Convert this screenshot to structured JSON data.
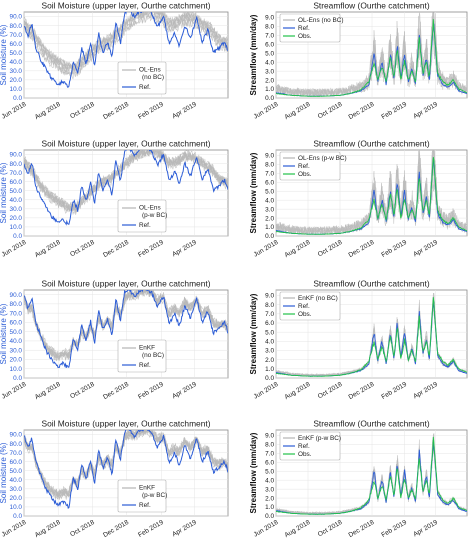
{
  "figure": {
    "panels": [
      {
        "id": "sm1",
        "kind": "sm",
        "title": "Soil Moisture (upper layer, Ourthe catchment)",
        "ylabel": "Soil moisture (%)",
        "legend": [
          {
            "label": "OL-Ens\n(no BC)",
            "color": "#b5b5b5"
          },
          {
            "label": "Ref.",
            "color": "#2b5cd6"
          }
        ],
        "legend_pos": "lower-center",
        "series": "ens_ref"
      },
      {
        "id": "sf1",
        "kind": "sf",
        "title": "Streamflow (Ourthe catchment)",
        "ylabel": "Streamflow (mm/day)",
        "legend": [
          {
            "label": "OL-Ens (no BC)",
            "color": "#b5b5b5"
          },
          {
            "label": "Ref.",
            "color": "#2b5cd6"
          },
          {
            "label": "Obs.",
            "color": "#22c24a"
          }
        ],
        "legend_pos": "upper-left",
        "spread": "wide"
      },
      {
        "id": "sm2",
        "kind": "sm",
        "title": "Soil Moisture (upper layer, Ourthe catchment)",
        "ylabel": "Soil moisture (%)",
        "legend": [
          {
            "label": "OL-Ens\n(p-w BC)",
            "color": "#b5b5b5"
          },
          {
            "label": "Ref.",
            "color": "#2b5cd6"
          }
        ],
        "legend_pos": "lower-center",
        "series": "ens_ref"
      },
      {
        "id": "sf2",
        "kind": "sf",
        "title": "Streamflow (Ourthe catchment)",
        "ylabel": "Streamflow (mm/day)",
        "legend": [
          {
            "label": "OL-Ens (p-w BC)",
            "color": "#b5b5b5"
          },
          {
            "label": "Ref.",
            "color": "#2b5cd6"
          },
          {
            "label": "Obs.",
            "color": "#22c24a"
          }
        ],
        "legend_pos": "upper-left",
        "spread": "wide"
      },
      {
        "id": "sm3",
        "kind": "sm",
        "title": "Soil Moisture (upper layer, Ourthe catchment)",
        "ylabel": "Soil moisture (%)",
        "legend": [
          {
            "label": "EnKF\n(no BC)",
            "color": "#b5b5b5"
          },
          {
            "label": "Ref.",
            "color": "#2b5cd6"
          }
        ],
        "legend_pos": "lower-center",
        "series": "enkf"
      },
      {
        "id": "sf3",
        "kind": "sf",
        "title": "Streamflow (Ourthe catchment)",
        "ylabel": "Streamflow (mm/day)",
        "legend": [
          {
            "label": "EnKF (no BC)",
            "color": "#b5b5b5"
          },
          {
            "label": "Ref.",
            "color": "#2b5cd6"
          },
          {
            "label": "Obs.",
            "color": "#22c24a"
          }
        ],
        "legend_pos": "upper-left",
        "spread": "narrow"
      },
      {
        "id": "sm4",
        "kind": "sm",
        "title": "Soil Moisture (upper layer, Ourthe catchment)",
        "ylabel": "Soil moisture (%)",
        "legend": [
          {
            "label": "EnKF\n(p-w BC)",
            "color": "#b5b5b5"
          },
          {
            "label": "Ref.",
            "color": "#2b5cd6"
          }
        ],
        "legend_pos": "lower-center",
        "series": "enkf"
      },
      {
        "id": "sf4",
        "kind": "sf",
        "title": "Streamflow (Ourthe catchment)",
        "ylabel": "Streamflow (mm/day)",
        "legend": [
          {
            "label": "EnKF (p-w BC)",
            "color": "#b5b5b5"
          },
          {
            "label": "Ref.",
            "color": "#2b5cd6"
          },
          {
            "label": "Obs.",
            "color": "#22c24a"
          }
        ],
        "legend_pos": "upper-left",
        "spread": "narrow"
      }
    ]
  },
  "chart_data": {
    "type": "line",
    "x_range": [
      "2018-06-01",
      "2019-05-31"
    ],
    "x_ticks": [
      "Jun 2018",
      "Aug 2018",
      "Oct 2018",
      "Dec 2018",
      "Feb 2019",
      "Apr 2019"
    ],
    "sm_axis": {
      "ylim": [
        0,
        95
      ],
      "ticks": [
        "0.0",
        "10.0",
        "20.0",
        "30.0",
        "40.0",
        "50.0",
        "60.0",
        "70.0",
        "80.0",
        "90.0"
      ]
    },
    "sf_axis": {
      "ylim": [
        0,
        9.6
      ],
      "ticks": [
        "0.0",
        "1.0",
        "2.0",
        "3.0",
        "4.0",
        "5.0",
        "6.0",
        "7.0",
        "8.0",
        "9.0"
      ]
    },
    "sm_ref": {
      "x": [
        "2018-06-01",
        "2018-06-08",
        "2018-06-15",
        "2018-06-22",
        "2018-07-01",
        "2018-07-10",
        "2018-07-20",
        "2018-08-01",
        "2018-08-10",
        "2018-08-20",
        "2018-08-28",
        "2018-09-05",
        "2018-09-12",
        "2018-09-20",
        "2018-09-28",
        "2018-10-05",
        "2018-10-12",
        "2018-10-20",
        "2018-10-28",
        "2018-11-05",
        "2018-11-12",
        "2018-11-20",
        "2018-11-28",
        "2018-12-05",
        "2018-12-15",
        "2018-12-25",
        "2019-01-05",
        "2019-01-15",
        "2019-01-25",
        "2019-02-05",
        "2019-02-15",
        "2019-02-25",
        "2019-03-05",
        "2019-03-15",
        "2019-03-25",
        "2019-04-05",
        "2019-04-15",
        "2019-04-25",
        "2019-05-05",
        "2019-05-15",
        "2019-05-25",
        "2019-05-31"
      ],
      "y": [
        80,
        68,
        82,
        55,
        42,
        32,
        22,
        15,
        18,
        12,
        40,
        28,
        55,
        38,
        60,
        35,
        72,
        50,
        62,
        45,
        85,
        60,
        95,
        98,
        90,
        96,
        98,
        94,
        78,
        90,
        60,
        72,
        58,
        80,
        66,
        88,
        62,
        75,
        50,
        55,
        62,
        52
      ]
    },
    "sm_ref_enkf": {
      "x": [
        "2018-06-01",
        "2018-06-08",
        "2018-06-15",
        "2018-06-22",
        "2018-07-01",
        "2018-07-10",
        "2018-07-20",
        "2018-08-01",
        "2018-08-10",
        "2018-08-20",
        "2018-08-28",
        "2018-09-05",
        "2018-09-12",
        "2018-09-20",
        "2018-09-28",
        "2018-10-05",
        "2018-10-12",
        "2018-10-20",
        "2018-10-28",
        "2018-11-05",
        "2018-11-12",
        "2018-11-20",
        "2018-11-28",
        "2018-12-05",
        "2018-12-15",
        "2018-12-25",
        "2019-01-05",
        "2019-01-15",
        "2019-01-25",
        "2019-02-05",
        "2019-02-15",
        "2019-02-25",
        "2019-03-05",
        "2019-03-15",
        "2019-03-25",
        "2019-04-05",
        "2019-04-15",
        "2019-04-25",
        "2019-05-05",
        "2019-05-15",
        "2019-05-25",
        "2019-05-31"
      ],
      "y": [
        90,
        75,
        86,
        60,
        45,
        30,
        20,
        12,
        16,
        10,
        42,
        30,
        58,
        40,
        62,
        36,
        74,
        52,
        64,
        46,
        86,
        62,
        94,
        96,
        88,
        95,
        97,
        92,
        76,
        88,
        58,
        70,
        56,
        78,
        64,
        86,
        60,
        72,
        48,
        54,
        60,
        50
      ]
    },
    "sm_ens_mean": {
      "x": [
        "2018-06-01",
        "2018-06-15",
        "2018-07-01",
        "2018-07-15",
        "2018-08-01",
        "2018-08-15",
        "2018-09-01",
        "2018-09-15",
        "2018-10-01",
        "2018-10-15",
        "2018-11-01",
        "2018-11-15",
        "2018-12-01",
        "2018-12-15",
        "2019-01-01",
        "2019-01-15",
        "2019-02-01",
        "2019-02-15",
        "2019-03-01",
        "2019-03-15",
        "2019-04-01",
        "2019-04-15",
        "2019-05-01",
        "2019-05-15",
        "2019-05-31"
      ],
      "y": [
        82,
        72,
        55,
        45,
        38,
        32,
        30,
        40,
        50,
        58,
        62,
        70,
        80,
        88,
        92,
        94,
        90,
        80,
        82,
        88,
        86,
        80,
        74,
        62,
        58
      ]
    },
    "sm_enkf_mean": {
      "x": [
        "2018-06-01",
        "2018-06-15",
        "2018-07-01",
        "2018-07-15",
        "2018-08-01",
        "2018-08-15",
        "2018-09-01",
        "2018-09-15",
        "2018-10-01",
        "2018-10-15",
        "2018-11-01",
        "2018-11-15",
        "2018-12-01",
        "2018-12-15",
        "2019-01-01",
        "2019-01-15",
        "2019-02-01",
        "2019-02-15",
        "2019-03-01",
        "2019-03-15",
        "2019-04-01",
        "2019-04-15",
        "2019-05-01",
        "2019-05-15",
        "2019-05-31"
      ],
      "y": [
        82,
        68,
        45,
        35,
        32,
        35,
        38,
        45,
        52,
        58,
        62,
        70,
        82,
        90,
        92,
        93,
        88,
        78,
        80,
        86,
        84,
        78,
        72,
        60,
        56
      ]
    },
    "sf_ref": {
      "x": [
        "2018-06-01",
        "2018-07-01",
        "2018-08-01",
        "2018-09-01",
        "2018-10-01",
        "2018-10-20",
        "2018-11-10",
        "2018-11-25",
        "2018-12-05",
        "2018-12-12",
        "2018-12-20",
        "2018-12-28",
        "2019-01-05",
        "2019-01-12",
        "2019-01-18",
        "2019-01-25",
        "2019-02-01",
        "2019-02-08",
        "2019-02-15",
        "2019-02-22",
        "2019-03-01",
        "2019-03-08",
        "2019-03-15",
        "2019-03-20",
        "2019-03-28",
        "2019-04-05",
        "2019-04-15",
        "2019-04-25",
        "2019-05-05",
        "2019-05-15",
        "2019-05-31"
      ],
      "y": [
        0.6,
        0.3,
        0.2,
        0.2,
        0.3,
        0.5,
        0.8,
        1.5,
        5.0,
        1.8,
        4.0,
        1.5,
        5.0,
        2.0,
        6.0,
        2.2,
        5.0,
        1.8,
        3.2,
        1.5,
        7.2,
        2.5,
        4.5,
        1.8,
        8.6,
        2.5,
        1.5,
        1.2,
        1.8,
        0.8,
        0.5
      ]
    },
    "sf_obs": {
      "x": [
        "2018-06-01",
        "2018-07-01",
        "2018-08-01",
        "2018-09-01",
        "2018-10-01",
        "2018-10-20",
        "2018-11-10",
        "2018-11-25",
        "2018-12-05",
        "2018-12-12",
        "2018-12-20",
        "2018-12-28",
        "2019-01-05",
        "2019-01-12",
        "2019-01-18",
        "2019-01-25",
        "2019-02-01",
        "2019-02-08",
        "2019-02-15",
        "2019-02-22",
        "2019-03-01",
        "2019-03-08",
        "2019-03-15",
        "2019-03-20",
        "2019-03-28",
        "2019-04-05",
        "2019-04-15",
        "2019-04-25",
        "2019-05-05",
        "2019-05-15",
        "2019-05-31"
      ],
      "y": [
        0.5,
        0.3,
        0.2,
        0.2,
        0.3,
        0.5,
        0.9,
        1.8,
        4.0,
        2.0,
        3.5,
        1.8,
        4.6,
        2.2,
        5.5,
        2.0,
        4.2,
        2.0,
        3.0,
        1.8,
        6.5,
        2.8,
        4.0,
        2.2,
        8.8,
        2.8,
        1.8,
        1.4,
        2.0,
        1.0,
        0.6
      ]
    }
  }
}
